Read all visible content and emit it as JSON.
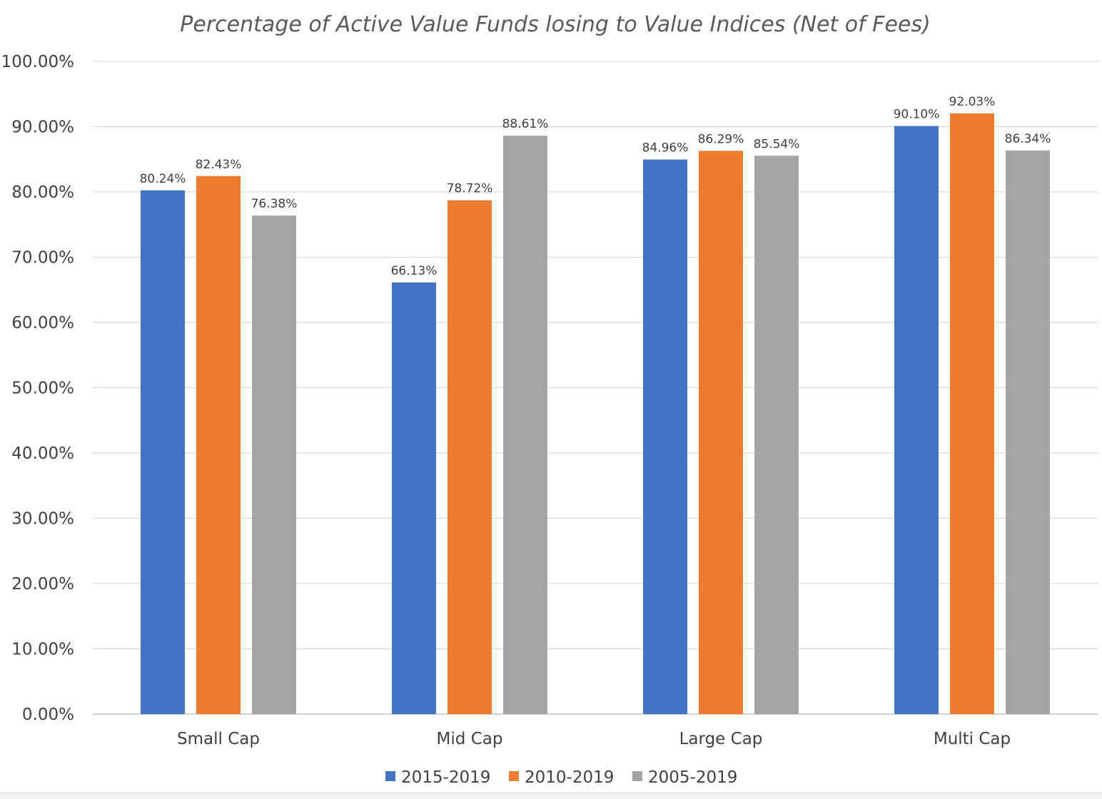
{
  "chart_data": {
    "type": "bar",
    "title": "Percentage of Active Value Funds losing to Value Indices (Net of Fees)",
    "xlabel": "",
    "ylabel": "",
    "categories": [
      "Small Cap",
      "Mid Cap",
      "Large Cap",
      "Multi Cap"
    ],
    "series": [
      {
        "name": "2015-2019",
        "color": "#4472C4",
        "values": [
          80.24,
          66.13,
          84.96,
          90.1
        ],
        "labels": [
          "80.24%",
          "66.13%",
          "84.96%",
          "90.10%"
        ]
      },
      {
        "name": "2010-2019",
        "color": "#ED7D31",
        "values": [
          82.43,
          78.72,
          86.29,
          92.03
        ],
        "labels": [
          "82.43%",
          "78.72%",
          "86.29%",
          "92.03%"
        ]
      },
      {
        "name": "2005-2019",
        "color": "#A5A5A5",
        "values": [
          76.38,
          88.61,
          85.54,
          86.34
        ],
        "labels": [
          "76.38%",
          "88.61%",
          "85.54%",
          "86.34%"
        ]
      }
    ],
    "ylim": [
      0,
      100
    ],
    "yticks": [
      "0.00%",
      "10.00%",
      "20.00%",
      "30.00%",
      "40.00%",
      "50.00%",
      "60.00%",
      "70.00%",
      "80.00%",
      "90.00%",
      "100.00%"
    ],
    "grid": true,
    "legend_position": "bottom"
  }
}
